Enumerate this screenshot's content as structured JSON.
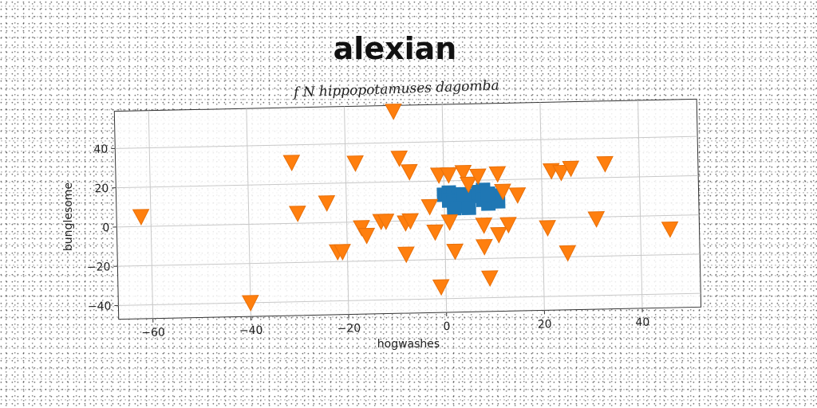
{
  "chart_data": {
    "type": "scatter",
    "title": "alexian",
    "subtitle": "f N hippopotamuses dagomba",
    "xlabel": "hogwashes",
    "ylabel": "bunglesome",
    "xlim": [
      -67,
      52
    ],
    "ylim": [
      -47,
      59
    ],
    "xticks": [
      -60,
      -40,
      -20,
      0,
      20,
      40
    ],
    "yticks": [
      -40,
      -20,
      0,
      20,
      40
    ],
    "xtick_labels": [
      "−60",
      "−40",
      "−20",
      "0",
      "20",
      "40"
    ],
    "ytick_labels": [
      "−40",
      "−20",
      "0",
      "20",
      "40"
    ],
    "grid": true,
    "series": [
      {
        "marker": "square",
        "color": "#1f77b4",
        "points": [
          [
            0,
            13
          ],
          [
            1,
            14
          ],
          [
            2,
            13
          ],
          [
            3,
            12
          ],
          [
            1,
            10
          ],
          [
            2,
            9
          ],
          [
            3,
            8
          ],
          [
            4,
            7
          ],
          [
            5,
            9
          ],
          [
            6,
            12
          ],
          [
            7,
            14
          ],
          [
            8,
            15
          ],
          [
            8,
            10
          ],
          [
            9,
            8
          ],
          [
            10,
            12
          ],
          [
            11,
            9
          ],
          [
            9,
            13
          ],
          [
            2,
            6
          ],
          [
            5,
            6
          ],
          [
            4,
            13
          ]
        ]
      },
      {
        "marker": "triangle-down",
        "color": "#ff7f0e",
        "points": [
          [
            -62,
            5
          ],
          [
            -40,
            -40
          ],
          [
            -31,
            31
          ],
          [
            -30,
            5
          ],
          [
            -24,
            10
          ],
          [
            -22,
            -15
          ],
          [
            -21,
            -15
          ],
          [
            -17,
            -3
          ],
          [
            -16,
            -7
          ],
          [
            -18,
            30
          ],
          [
            -13,
            0
          ],
          [
            -12,
            0
          ],
          [
            -10,
            56
          ],
          [
            -9,
            32
          ],
          [
            -7,
            25
          ],
          [
            -8,
            -1
          ],
          [
            -7,
            0
          ],
          [
            -8,
            -17
          ],
          [
            -3,
            7
          ],
          [
            -2,
            -6
          ],
          [
            -1,
            23
          ],
          [
            -1,
            -34
          ],
          [
            1,
            23
          ],
          [
            1,
            -1
          ],
          [
            2,
            -16
          ],
          [
            4,
            24
          ],
          [
            5,
            18
          ],
          [
            7,
            22
          ],
          [
            8,
            -3
          ],
          [
            8,
            -14
          ],
          [
            9,
            -30
          ],
          [
            11,
            23
          ],
          [
            11,
            -8
          ],
          [
            12,
            14
          ],
          [
            13,
            -3
          ],
          [
            15,
            12
          ],
          [
            21,
            -5
          ],
          [
            22,
            24
          ],
          [
            24,
            23
          ],
          [
            25,
            -18
          ],
          [
            26,
            25
          ],
          [
            31,
            -1
          ],
          [
            33,
            27
          ],
          [
            46,
            -7
          ]
        ]
      }
    ]
  }
}
